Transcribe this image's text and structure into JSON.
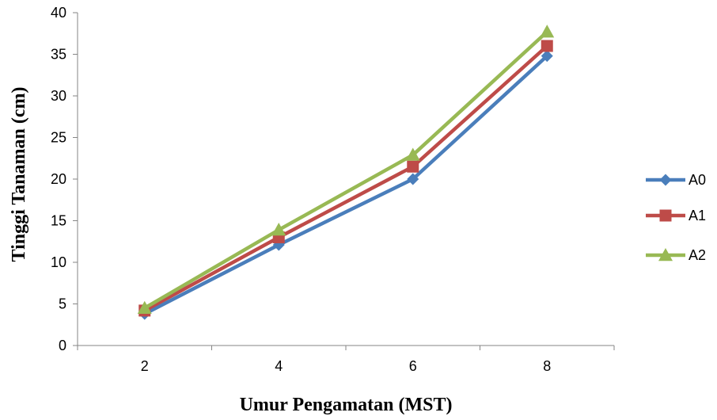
{
  "chart_data": {
    "type": "line",
    "title": "",
    "xlabel": "Umur Pengamatan (MST)",
    "ylabel": "Tinggi Tanaman (cm)",
    "categories": [
      "2",
      "4",
      "6",
      "8"
    ],
    "ylim": [
      0,
      40
    ],
    "yticks": [
      0,
      5,
      10,
      15,
      20,
      25,
      30,
      35,
      40
    ],
    "grid": false,
    "legend_position": "right",
    "series": [
      {
        "name": "A0",
        "values": [
          3.8,
          12.1,
          20.0,
          34.8
        ],
        "color": "#4A7EBB",
        "marker": "diamond"
      },
      {
        "name": "A1",
        "values": [
          4.2,
          13.0,
          21.5,
          36.0
        ],
        "color": "#BE4B48",
        "marker": "square"
      },
      {
        "name": "A2",
        "values": [
          4.5,
          13.9,
          22.9,
          37.7
        ],
        "color": "#98B954",
        "marker": "triangle"
      }
    ]
  }
}
